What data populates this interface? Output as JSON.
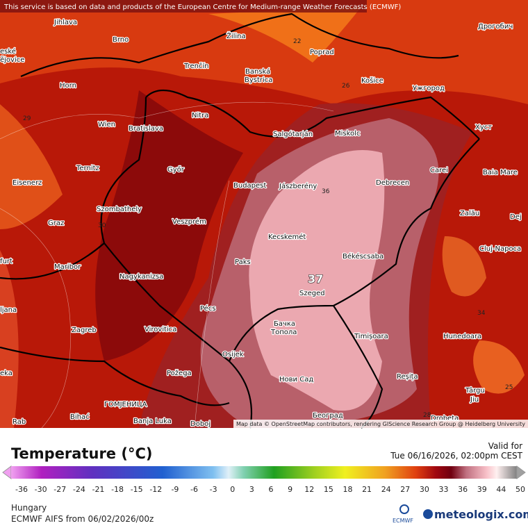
{
  "attribution_top": "This service is based on data and products of the European Centre for Medium-range Weather Forecasts (ECMWF)",
  "map": {
    "cities": [
      "Jihlava",
      "Brno",
      "Žilina",
      "Poprad",
      "Дрогобич",
      "eské",
      "ějovice",
      "Trenčín",
      "Banská",
      "Bystrica",
      "Horn",
      "Košice",
      "Ужгород",
      "Nitra",
      "Wien",
      "Bratislava",
      "Salgótarján",
      "Miskolc",
      "Хуст",
      "Ternitz",
      "Győr",
      "Carei",
      "Baia Mare",
      "Eisenerz",
      "Budapest",
      "Jászberény",
      "Debrecen",
      "Szombathely",
      "Zalău",
      "Dej",
      "Graz",
      "Veszprém",
      "Kecskemét",
      "Cluj-Napoca",
      "furt",
      "Paks",
      "Békéscsaba",
      "Maribor",
      "Nagykanizsa",
      "ljana",
      "Szeged",
      "Pécs",
      "Zagreb",
      "Virovitica",
      "Бачка",
      "Топола",
      "Timișoara",
      "Hunedoara",
      "Osijek",
      "eka",
      "Požega",
      "Reșița",
      "Нови Сад",
      "Târgu",
      "Jiu",
      "ГОМЈЕНИЦА",
      "Bihać",
      "Banja Luka",
      "Rab",
      "Doboj",
      "Београд",
      "Drobeta"
    ],
    "contour_labels": [
      "22",
      "26",
      "29",
      "30",
      "36",
      "34",
      "25",
      "28"
    ],
    "max_label": "37",
    "attribution": "Map data © OpenStreetMap contributors, rendering GIScience Research Group @ Heidelberg University"
  },
  "legend": {
    "title": "Temperature (°C)",
    "valid_label": "Valid for",
    "valid_time": "Tue 06/16/2026, 02:00pm CEST",
    "ticks": [
      -36,
      -30,
      -27,
      -24,
      -21,
      -18,
      -15,
      -12,
      -9,
      -6,
      -3,
      0,
      3,
      6,
      9,
      12,
      15,
      18,
      21,
      24,
      27,
      30,
      33,
      36,
      39,
      44,
      50
    ]
  },
  "footer": {
    "region": "Hungary",
    "model": "ECMWF AIFS from  06/02/2026/00z",
    "ecmwf_logo": "ECMWF",
    "brand": "meteologix.com"
  }
}
